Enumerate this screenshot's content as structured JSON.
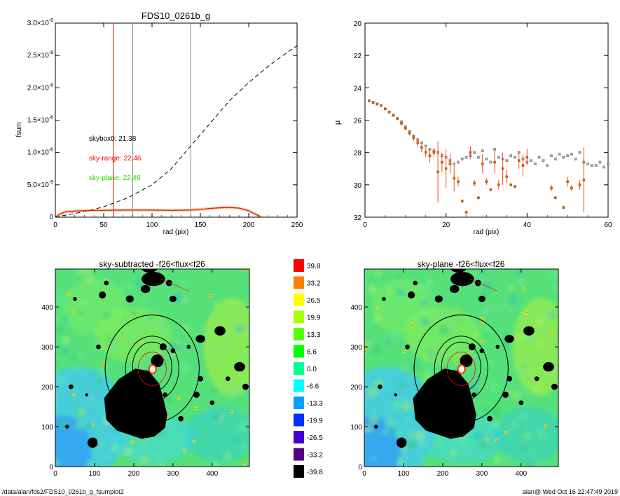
{
  "footer": {
    "path": "/data/alan/fds2/FDS10_0261b_g_fsumplot2",
    "stamp": "alan@  Wed Oct 16 22:47:49 2019"
  },
  "chart_data": [
    {
      "type": "line",
      "title": "FDS10_0261b_g",
      "xlabel": "rad (pix)",
      "ylabel": "fsum",
      "xlim": [
        0,
        250
      ],
      "ylim": [
        0,
        3e-08
      ],
      "x_ticks": [
        "0",
        "50",
        "100",
        "150",
        "200",
        "250"
      ],
      "y_ticks": [
        {
          "mant": "0",
          "exp": ""
        },
        {
          "mant": "5.0×10",
          "exp": "-9"
        },
        {
          "mant": "1.0×10",
          "exp": "-8"
        },
        {
          "mant": "1.5×10",
          "exp": "-8"
        },
        {
          "mant": "2.0×10",
          "exp": "-8"
        },
        {
          "mant": "2.5×10",
          "exp": "-8"
        },
        {
          "mant": "3.0×10",
          "exp": "-8"
        }
      ],
      "vlines": [
        {
          "x": 60,
          "color": "#ff0000"
        },
        {
          "x": 80,
          "color": "#888888"
        },
        {
          "x": 140,
          "color": "#888888"
        }
      ],
      "annotations": [
        {
          "text": "skybox0: 21.38",
          "color": "#000000"
        },
        {
          "text": "sky-range: 22.46",
          "color": "#ff0000"
        },
        {
          "text": "sky-plane: 22.46",
          "color": "#22dd00"
        }
      ],
      "series": [
        {
          "style": "dashed",
          "color": "#000000",
          "x": [
            0,
            10,
            25,
            50,
            75,
            100,
            120,
            140,
            160,
            180,
            200,
            220,
            240,
            250
          ],
          "y": [
            0,
            3e-10,
            7e-10,
            1.6e-09,
            3e-09,
            5e-09,
            7.5e-09,
            1.1e-08,
            1.45e-08,
            1.8e-08,
            2.08e-08,
            2.33e-08,
            2.55e-08,
            2.65e-08
          ]
        },
        {
          "style": "solid",
          "color": "#cc2200",
          "x": [
            0,
            5,
            10,
            20,
            30,
            40,
            50,
            60,
            80,
            100,
            120,
            140,
            150,
            160,
            170,
            180,
            190,
            200,
            205,
            210,
            213
          ],
          "y": [
            0,
            5e-10,
            8e-10,
            9.5e-10,
            1e-09,
            1.05e-09,
            1.05e-09,
            1.08e-09,
            1.1e-09,
            1.1e-09,
            1.05e-09,
            1.1e-09,
            1.2e-09,
            1.35e-09,
            1.45e-09,
            1.5e-09,
            1.4e-09,
            1e-09,
            6e-10,
            2.5e-10,
            0
          ]
        }
      ]
    },
    {
      "type": "scatter",
      "xlabel": "rad (pix)",
      "ylabel": "μ",
      "xlim": [
        0,
        60
      ],
      "ylim": [
        32,
        20
      ],
      "x_ticks": [
        "0",
        "20",
        "40",
        "60"
      ],
      "y_ticks": [
        "20",
        "22",
        "24",
        "26",
        "28",
        "30",
        "32"
      ],
      "gray_points": {
        "x": [
          1,
          2,
          3,
          4,
          5,
          6,
          7,
          8,
          9,
          10,
          11,
          12,
          13,
          14,
          15,
          16,
          17,
          18,
          19,
          20,
          21,
          22,
          23,
          24,
          25,
          26,
          27,
          28,
          29,
          30,
          31,
          32,
          33,
          34,
          35,
          36,
          37,
          38,
          39,
          40,
          41,
          42,
          43,
          44,
          45,
          46,
          47,
          48,
          49,
          50,
          51,
          52,
          53,
          54,
          55,
          56,
          57,
          58,
          59,
          60
        ],
        "y": [
          24.8,
          24.9,
          25.0,
          25.1,
          25.3,
          25.5,
          25.7,
          25.9,
          26.1,
          26.4,
          26.7,
          27.0,
          27.2,
          27.4,
          27.6,
          27.8,
          27.9,
          28.0,
          28.2,
          28.3,
          28.5,
          28.7,
          28.6,
          28.4,
          28.3,
          28.2,
          28.0,
          28.3,
          27.9,
          28.4,
          28.6,
          27.8,
          28.3,
          28.4,
          28.5,
          28.2,
          28.3,
          28.0,
          28.4,
          28.6,
          28.5,
          28.7,
          28.3,
          28.5,
          28.8,
          28.2,
          28.4,
          28.1,
          28.3,
          28.2,
          28.1,
          28.4,
          28.0,
          28.6,
          28.7,
          28.8,
          28.8,
          28.6,
          28.9,
          28.7
        ]
      },
      "red_points": {
        "x": [
          1,
          2,
          3,
          4,
          5,
          6,
          7,
          8,
          9,
          10,
          11,
          12,
          13,
          14,
          15,
          16,
          17,
          18,
          19,
          20,
          21,
          22,
          23,
          24,
          25,
          26,
          27,
          28,
          29,
          30,
          31,
          32,
          33,
          34,
          35,
          36,
          37,
          38,
          39,
          40,
          46,
          47,
          49,
          50,
          51,
          53,
          54
        ],
        "y": [
          24.8,
          24.9,
          25.0,
          25.1,
          25.3,
          25.5,
          25.7,
          25.9,
          26.2,
          26.5,
          26.8,
          27.1,
          27.4,
          27.7,
          28.0,
          28.2,
          28.0,
          29.2,
          28.6,
          29.0,
          28.7,
          29.6,
          29.8,
          31.0,
          31.7,
          28.0,
          29.9,
          30.8,
          28.7,
          29.8,
          30.3,
          28.6,
          30.0,
          29.0,
          29.5,
          30.0,
          30.1,
          28.5,
          28.8,
          28.3,
          30.2,
          30.8,
          31.4,
          29.8,
          30.2,
          30.0,
          29.7
        ],
        "err": [
          0.05,
          0.05,
          0.05,
          0.05,
          0.05,
          0.06,
          0.07,
          0.08,
          0.1,
          0.1,
          0.15,
          0.2,
          0.25,
          0.3,
          0.3,
          0.4,
          0.3,
          1.9,
          0.6,
          1.2,
          0.6,
          0.8,
          0.3,
          0.1,
          0.1,
          0.4,
          0.2,
          0.1,
          0.6,
          0.2,
          0.1,
          0.7,
          0.3,
          1.0,
          0.4,
          0.1,
          0.1,
          0.5,
          0.7,
          0.5,
          0.2,
          0.1,
          0.1,
          0.3,
          0.2,
          0.3,
          2.0
        ]
      }
    },
    {
      "type": "heatmap",
      "title": "sky-subtracted -f26<flux<f26",
      "x_ticks": [
        "0",
        "100",
        "200",
        "300",
        "400"
      ],
      "y_ticks": [
        "0",
        "100",
        "200",
        "300",
        "400"
      ]
    },
    {
      "type": "heatmap",
      "title": "sky-plane -f26<flux<f26",
      "x_ticks": [
        "0",
        "100",
        "200",
        "300",
        "400"
      ],
      "y_ticks": [
        "0",
        "100",
        "200",
        "300",
        "400"
      ]
    }
  ],
  "colorbar": {
    "levels": [
      {
        "label": "39.8",
        "color": "#ff0000"
      },
      {
        "label": "33.2",
        "color": "#ff7f00"
      },
      {
        "label": "26.5",
        "color": "#ffff00"
      },
      {
        "label": "19.9",
        "color": "#aaff00"
      },
      {
        "label": "13.3",
        "color": "#55ff00"
      },
      {
        "label": "6.6",
        "color": "#00ff00"
      },
      {
        "label": "0.0",
        "color": "#00ff90"
      },
      {
        "label": "-6.6",
        "color": "#00ffff"
      },
      {
        "label": "-13.3",
        "color": "#00a0ff"
      },
      {
        "label": "-19.9",
        "color": "#0030ff"
      },
      {
        "label": "-26.5",
        "color": "#4000d0"
      },
      {
        "label": "-33.2",
        "color": "#550088"
      },
      {
        "label": "-39.8",
        "color": "#000000"
      }
    ]
  }
}
